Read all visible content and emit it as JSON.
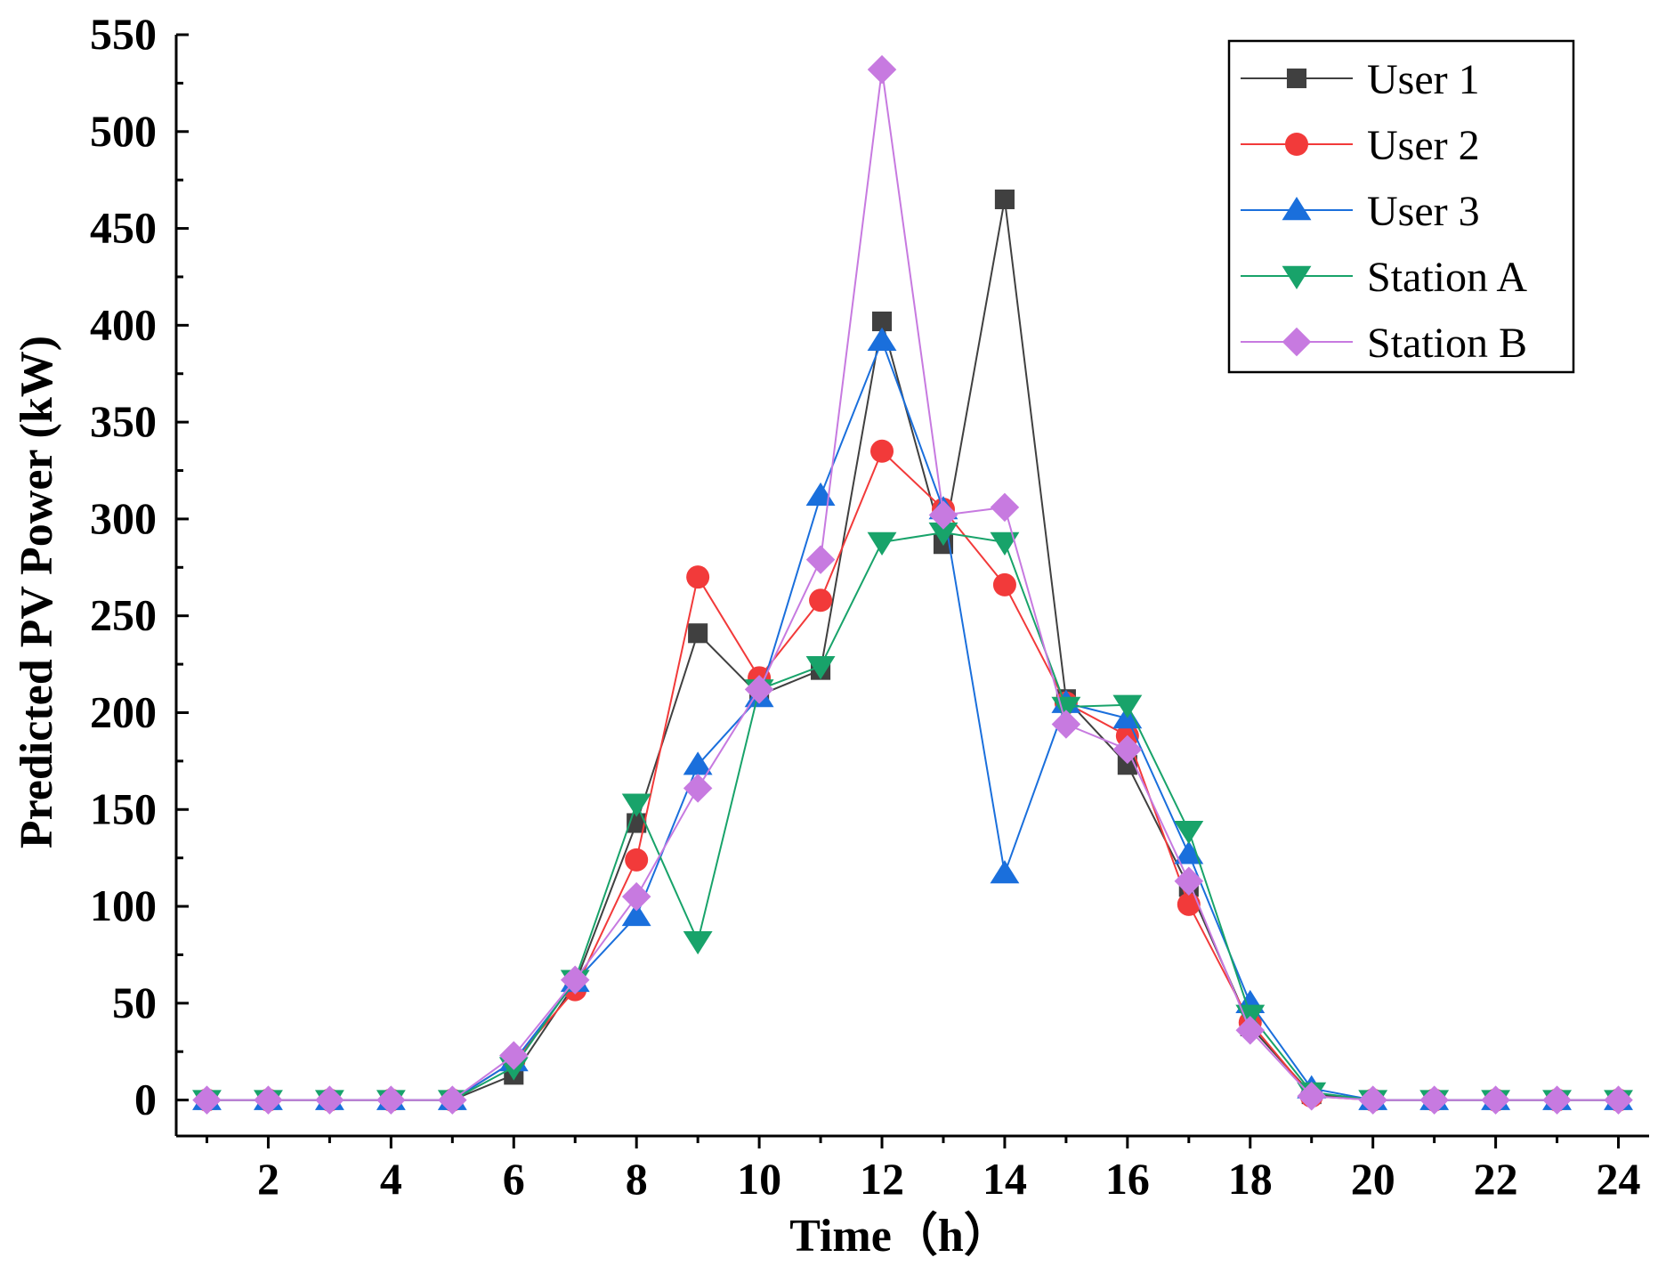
{
  "chart_data": {
    "type": "line",
    "title": "",
    "xlabel": "Time（h）",
    "ylabel": "Predicted PV Power (kW)",
    "xlim": [
      0.5,
      24.5
    ],
    "ylim": [
      -25,
      550
    ],
    "xticks": [
      2,
      4,
      6,
      8,
      10,
      12,
      14,
      16,
      18,
      20,
      22,
      24
    ],
    "yticks": [
      0,
      50,
      100,
      150,
      200,
      250,
      300,
      350,
      400,
      450,
      500,
      550
    ],
    "grid": false,
    "legend_position": "top-right",
    "x": [
      1,
      2,
      3,
      4,
      5,
      6,
      7,
      8,
      9,
      10,
      11,
      12,
      13,
      14,
      15,
      16,
      17,
      18,
      19,
      20,
      21,
      22,
      23,
      24
    ],
    "series": [
      {
        "name": "User 1",
        "color": "#404040",
        "marker": "square",
        "values": [
          0,
          0,
          0,
          0,
          0,
          13,
          60,
          143,
          241,
          209,
          222,
          402,
          287,
          465,
          207,
          173,
          110,
          38,
          3,
          0,
          0,
          0,
          0,
          0
        ]
      },
      {
        "name": "User 2",
        "color": "#f23a3a",
        "marker": "circle",
        "values": [
          0,
          0,
          0,
          0,
          0,
          20,
          57,
          124,
          270,
          218,
          258,
          335,
          305,
          266,
          205,
          188,
          101,
          40,
          2,
          0,
          0,
          0,
          0,
          0
        ]
      },
      {
        "name": "User 3",
        "color": "#1a6fdc",
        "marker": "triangle-up",
        "values": [
          0,
          0,
          0,
          0,
          0,
          20,
          61,
          95,
          173,
          208,
          312,
          392,
          305,
          117,
          205,
          197,
          127,
          50,
          6,
          0,
          0,
          0,
          0,
          0
        ]
      },
      {
        "name": "Station A",
        "color": "#18a36a",
        "marker": "triangle-down",
        "values": [
          0,
          0,
          0,
          0,
          0,
          17,
          62,
          153,
          82,
          212,
          224,
          288,
          293,
          288,
          203,
          204,
          139,
          44,
          4,
          0,
          0,
          0,
          0,
          0
        ]
      },
      {
        "name": "Station B",
        "color": "#c77ae0",
        "marker": "diamond",
        "values": [
          0,
          0,
          0,
          0,
          0,
          23,
          62,
          105,
          161,
          212,
          279,
          532,
          302,
          306,
          194,
          181,
          113,
          36,
          2,
          0,
          0,
          0,
          0,
          0
        ]
      }
    ]
  }
}
